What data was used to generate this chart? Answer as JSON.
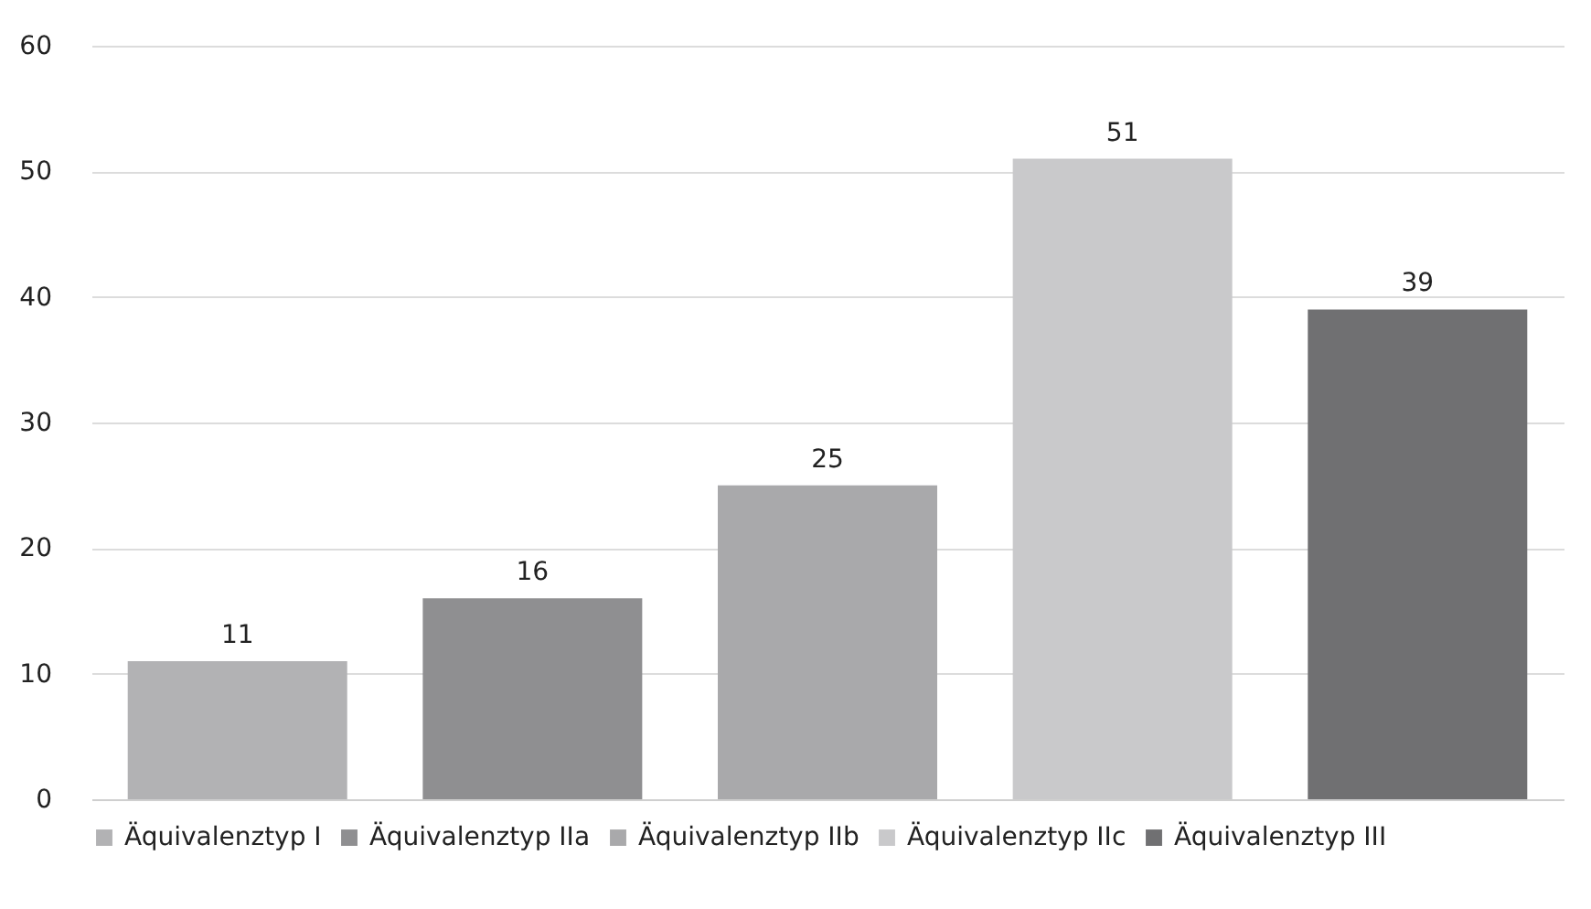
{
  "chart_data": {
    "type": "bar",
    "categories": [
      null,
      null,
      null,
      null,
      null
    ],
    "series": [
      {
        "name": "Äquivalenztyp I",
        "color": "#b2b2b4",
        "values": [
          11,
          null,
          null,
          null,
          null
        ]
      },
      {
        "name": "Äquivalenztyp IIa",
        "color": "#8f8f91",
        "values": [
          null,
          16,
          null,
          null,
          null
        ]
      },
      {
        "name": "Äquivalenztyp IIb",
        "color": "#a9a9ab",
        "values": [
          null,
          null,
          25,
          null,
          null
        ]
      },
      {
        "name": "Äquivalenztyp IIc",
        "color": "#c9c9cb",
        "values": [
          null,
          null,
          null,
          51,
          null
        ]
      },
      {
        "name": "Äquivalenztyp III",
        "color": "#707072",
        "values": [
          null,
          null,
          null,
          null,
          39
        ]
      }
    ],
    "ylim": [
      0,
      60
    ],
    "yticks": [
      0,
      10,
      20,
      30,
      40,
      50,
      60
    ],
    "grid": "y",
    "legend": "bottom",
    "data_labels": true
  }
}
